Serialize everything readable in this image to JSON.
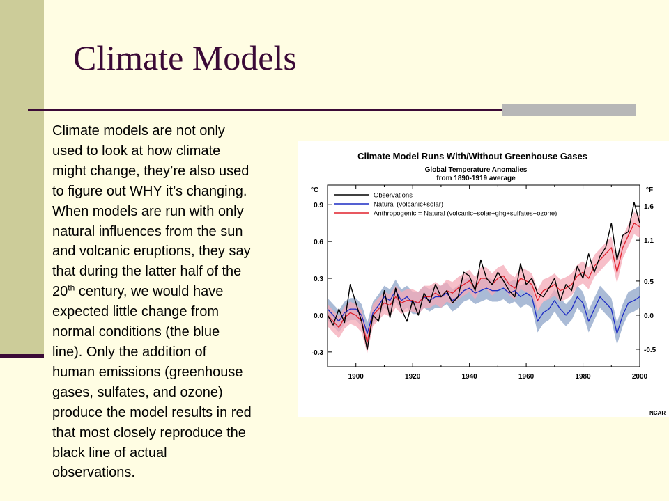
{
  "slide": {
    "title": "Climate Models",
    "colors": {
      "background": "#fffde3",
      "accent_band": "#cccc99",
      "title": "#3b0a37",
      "rule": "#3b0a37",
      "rule_accent": "#b7b7b7"
    },
    "body_lines": [
      "Climate models are not only",
      "used to look at how climate",
      "might change, they’re also used",
      "to figure out WHY it’s changing.",
      "When models are run with only",
      "natural influences from the sun",
      "and volcanic eruptions, they say",
      "that during the latter half of the",
      "century, we would have",
      "expected little change from",
      "normal conditions (the blue",
      "line). Only the addition of",
      "human emissions (greenhouse",
      "gases, sulfates, and ozone)",
      "produce the model results in red",
      "that most closely reproduce the",
      "black line of actual",
      "observations."
    ],
    "century_num": "20",
    "century_sup": "th"
  },
  "chart_data": {
    "type": "line",
    "title": "Climate Model Runs With/Without Greenhouse Gases",
    "subtitle_lines": [
      "Global Temperature Anomalies",
      "from 1890-1919 average"
    ],
    "left_unit": "°C",
    "right_unit": "°F",
    "credit": "NCAR",
    "xlim": [
      1890,
      2000
    ],
    "ylim": [
      -0.42,
      1.06
    ],
    "x_ticks": [
      1900,
      1920,
      1940,
      1960,
      1980,
      2000
    ],
    "y_ticks_left": [
      {
        "v": 0.9,
        "label": "0.9"
      },
      {
        "v": 0.6,
        "label": "0.6"
      },
      {
        "v": 0.3,
        "label": "0.3"
      },
      {
        "v": 0.0,
        "label": "0.0"
      },
      {
        "v": -0.3,
        "label": "-0.3"
      }
    ],
    "y_ticks_right": [
      {
        "v": 0.889,
        "label": "1.6"
      },
      {
        "v": 0.611,
        "label": "1.1"
      },
      {
        "v": 0.278,
        "label": "0.5"
      },
      {
        "v": 0.0,
        "label": "0.0"
      },
      {
        "v": -0.278,
        "label": "-0.5"
      }
    ],
    "x": [
      1890,
      1892,
      1894,
      1896,
      1898,
      1900,
      1902,
      1904,
      1906,
      1908,
      1910,
      1912,
      1914,
      1916,
      1918,
      1920,
      1922,
      1924,
      1926,
      1928,
      1930,
      1932,
      1934,
      1936,
      1938,
      1940,
      1942,
      1944,
      1946,
      1948,
      1950,
      1952,
      1954,
      1956,
      1958,
      1960,
      1962,
      1964,
      1966,
      1968,
      1970,
      1972,
      1974,
      1976,
      1978,
      1980,
      1982,
      1984,
      1986,
      1988,
      1990,
      1992,
      1994,
      1996,
      1998,
      2000
    ],
    "series": [
      {
        "name": "Observations",
        "color": "#000000",
        "values": [
          0.0,
          -0.08,
          0.05,
          -0.06,
          0.25,
          0.1,
          -0.05,
          -0.28,
          0.0,
          -0.05,
          0.2,
          -0.02,
          0.22,
          0.05,
          -0.05,
          0.12,
          0.0,
          0.18,
          0.1,
          0.25,
          0.15,
          0.2,
          0.1,
          0.15,
          0.35,
          0.32,
          0.2,
          0.45,
          0.3,
          0.25,
          0.35,
          0.28,
          0.2,
          0.15,
          0.42,
          0.25,
          0.3,
          0.18,
          0.15,
          0.22,
          0.3,
          0.12,
          0.25,
          0.2,
          0.4,
          0.3,
          0.5,
          0.35,
          0.48,
          0.55,
          0.75,
          0.45,
          0.65,
          0.68,
          0.92,
          0.75
        ]
      },
      {
        "name": "Natural (volcanic+solar)",
        "color": "#1c2bc4",
        "values": [
          0.05,
          0.0,
          -0.05,
          0.02,
          0.05,
          0.05,
          0.0,
          -0.15,
          0.02,
          0.08,
          0.15,
          0.12,
          0.2,
          0.12,
          0.15,
          0.1,
          0.1,
          0.15,
          0.12,
          0.15,
          0.15,
          0.18,
          0.12,
          0.15,
          0.2,
          0.22,
          0.18,
          0.2,
          0.22,
          0.2,
          0.2,
          0.22,
          0.18,
          0.2,
          0.15,
          0.18,
          0.15,
          -0.05,
          0.02,
          0.05,
          0.12,
          0.05,
          0.0,
          0.05,
          0.15,
          0.1,
          -0.05,
          0.05,
          0.15,
          0.1,
          0.05,
          -0.15,
          0.0,
          0.1,
          0.12,
          0.15
        ]
      },
      {
        "name": "Anthropogenic = Natural (volcanic+solar+ghg+sulfates+ozone)",
        "color": "#e0202c",
        "values": [
          0.0,
          -0.05,
          -0.1,
          -0.02,
          0.02,
          0.0,
          -0.05,
          -0.22,
          0.0,
          0.05,
          0.1,
          0.08,
          0.15,
          0.1,
          0.12,
          0.12,
          0.1,
          0.15,
          0.15,
          0.18,
          0.15,
          0.2,
          0.18,
          0.22,
          0.25,
          0.28,
          0.22,
          0.3,
          0.3,
          0.25,
          0.3,
          0.32,
          0.25,
          0.22,
          0.3,
          0.28,
          0.25,
          0.12,
          0.2,
          0.22,
          0.25,
          0.2,
          0.22,
          0.25,
          0.32,
          0.35,
          0.3,
          0.4,
          0.45,
          0.5,
          0.55,
          0.35,
          0.55,
          0.65,
          0.75,
          0.72
        ]
      }
    ],
    "envelope_halfwidth": 0.09,
    "legend": "top-left"
  }
}
